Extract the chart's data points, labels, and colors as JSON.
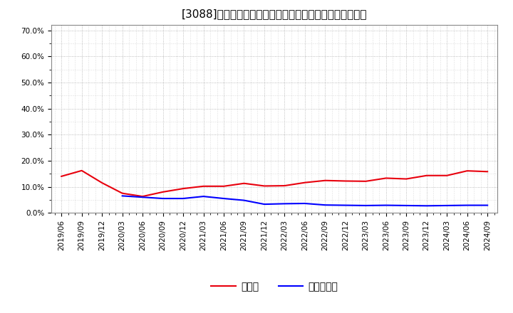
{
  "title": "[3088]　現頃金、有利子負債の総資産に対する比率の推移",
  "x_labels": [
    "2019/06",
    "2019/09",
    "2019/12",
    "2020/03",
    "2020/06",
    "2020/09",
    "2020/12",
    "2021/03",
    "2021/06",
    "2021/09",
    "2021/12",
    "2022/03",
    "2022/06",
    "2022/09",
    "2022/12",
    "2023/03",
    "2023/06",
    "2023/09",
    "2023/12",
    "2024/03",
    "2024/06",
    "2024/09"
  ],
  "cash_ratio": [
    0.14,
    0.162,
    0.115,
    0.075,
    0.063,
    0.08,
    0.093,
    0.102,
    0.102,
    0.113,
    0.103,
    0.104,
    0.116,
    0.124,
    0.122,
    0.121,
    0.133,
    0.13,
    0.143,
    0.143,
    0.161,
    0.158
  ],
  "debt_ratio": [
    null,
    null,
    null,
    0.065,
    0.06,
    0.055,
    0.055,
    0.063,
    0.055,
    0.048,
    0.033,
    0.035,
    0.036,
    0.03,
    0.029,
    0.028,
    0.029,
    0.028,
    0.027,
    0.028,
    0.029,
    0.029
  ],
  "cash_color": "#e8000d",
  "debt_color": "#0000ff",
  "legend_cash": "現頃金",
  "legend_debt": "有利子負債",
  "ylim": [
    0.0,
    0.72
  ],
  "yticks": [
    0.0,
    0.1,
    0.2,
    0.3,
    0.4,
    0.5,
    0.6,
    0.7
  ],
  "ytick_labels": [
    "0.0%",
    "10.0%",
    "20.0%",
    "30.0%",
    "40.0%",
    "50.0%",
    "60.0%",
    "70.0%"
  ],
  "background_color": "#ffffff",
  "grid_color": "#aaaaaa",
  "title_fontsize": 11,
  "tick_fontsize": 7.5,
  "legend_fontsize": 10
}
